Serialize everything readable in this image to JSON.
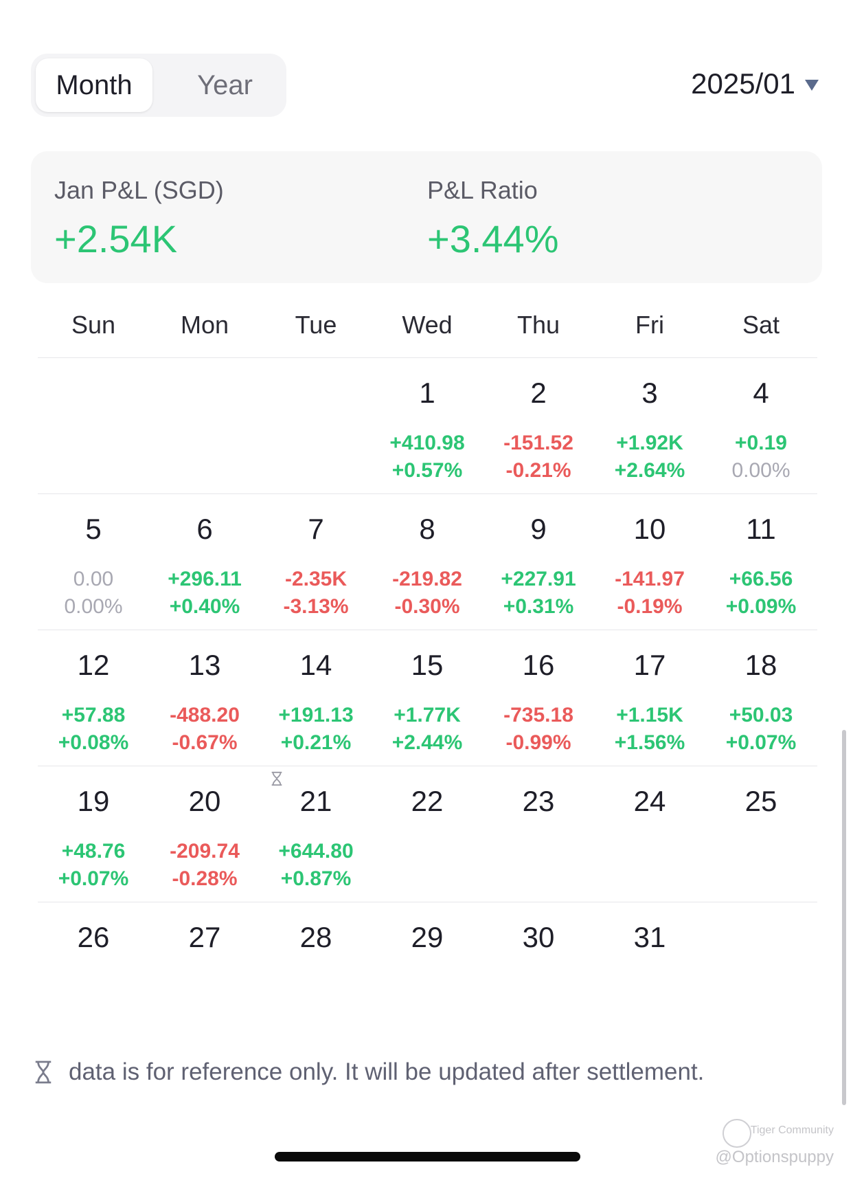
{
  "tabs": [
    {
      "label": "Month",
      "active": true
    },
    {
      "label": "Year",
      "active": false
    }
  ],
  "period": {
    "value": "2025/01"
  },
  "summary": {
    "pl_label": "Jan P&L (SGD)",
    "pl_value": "+2.54K",
    "ratio_label": "P&L Ratio",
    "ratio_value": "+3.44%"
  },
  "weekdays": [
    "Sun",
    "Mon",
    "Tue",
    "Wed",
    "Thu",
    "Fri",
    "Sat"
  ],
  "calendar": {
    "weeks": [
      [
        {
          "day": "",
          "pl": "",
          "pct": "",
          "dir": ""
        },
        {
          "day": "",
          "pl": "",
          "pct": "",
          "dir": ""
        },
        {
          "day": "",
          "pl": "",
          "pct": "",
          "dir": ""
        },
        {
          "day": "1",
          "pl": "+410.98",
          "pct": "+0.57%",
          "dir": "pos"
        },
        {
          "day": "2",
          "pl": "-151.52",
          "pct": "-0.21%",
          "dir": "neg"
        },
        {
          "day": "3",
          "pl": "+1.92K",
          "pct": "+2.64%",
          "dir": "pos"
        },
        {
          "day": "4",
          "pl": "+0.19",
          "pct": "0.00%",
          "dir": "pos",
          "pct_dir": "neu"
        }
      ],
      [
        {
          "day": "5",
          "pl": "0.00",
          "pct": "0.00%",
          "dir": "neu"
        },
        {
          "day": "6",
          "pl": "+296.11",
          "pct": "+0.40%",
          "dir": "pos"
        },
        {
          "day": "7",
          "pl": "-2.35K",
          "pct": "-3.13%",
          "dir": "neg"
        },
        {
          "day": "8",
          "pl": "-219.82",
          "pct": "-0.30%",
          "dir": "neg"
        },
        {
          "day": "9",
          "pl": "+227.91",
          "pct": "+0.31%",
          "dir": "pos"
        },
        {
          "day": "10",
          "pl": "-141.97",
          "pct": "-0.19%",
          "dir": "neg"
        },
        {
          "day": "11",
          "pl": "+66.56",
          "pct": "+0.09%",
          "dir": "pos"
        }
      ],
      [
        {
          "day": "12",
          "pl": "+57.88",
          "pct": "+0.08%",
          "dir": "pos"
        },
        {
          "day": "13",
          "pl": "-488.20",
          "pct": "-0.67%",
          "dir": "neg"
        },
        {
          "day": "14",
          "pl": "+191.13",
          "pct": "+0.21%",
          "dir": "pos"
        },
        {
          "day": "15",
          "pl": "+1.77K",
          "pct": "+2.44%",
          "dir": "pos"
        },
        {
          "day": "16",
          "pl": "-735.18",
          "pct": "-0.99%",
          "dir": "neg"
        },
        {
          "day": "17",
          "pl": "+1.15K",
          "pct": "+1.56%",
          "dir": "pos"
        },
        {
          "day": "18",
          "pl": "+50.03",
          "pct": "+0.07%",
          "dir": "pos"
        }
      ],
      [
        {
          "day": "19",
          "pl": "+48.76",
          "pct": "+0.07%",
          "dir": "pos"
        },
        {
          "day": "20",
          "pl": "-209.74",
          "pct": "-0.28%",
          "dir": "neg"
        },
        {
          "day": "21",
          "pl": "+644.80",
          "pct": "+0.87%",
          "dir": "pos"
        },
        {
          "day": "22",
          "pl": "",
          "pct": "",
          "dir": ""
        },
        {
          "day": "23",
          "pl": "",
          "pct": "",
          "dir": ""
        },
        {
          "day": "24",
          "pl": "",
          "pct": "",
          "dir": ""
        },
        {
          "day": "25",
          "pl": "",
          "pct": "",
          "dir": ""
        }
      ],
      [
        {
          "day": "26",
          "pl": "",
          "pct": "",
          "dir": ""
        },
        {
          "day": "27",
          "pl": "",
          "pct": "",
          "dir": ""
        },
        {
          "day": "28",
          "pl": "",
          "pct": "",
          "dir": ""
        },
        {
          "day": "29",
          "pl": "",
          "pct": "",
          "dir": ""
        },
        {
          "day": "30",
          "pl": "",
          "pct": "",
          "dir": ""
        },
        {
          "day": "31",
          "pl": "",
          "pct": "",
          "dir": ""
        },
        {
          "day": "",
          "pl": "",
          "pct": "",
          "dir": ""
        }
      ]
    ]
  },
  "footer": {
    "note": "data is for reference only. It will be updated after settlement.",
    "icon": "hourglass-icon"
  },
  "watermark": {
    "brand": "Tiger Community",
    "handle": "@Optionspuppy"
  },
  "colors": {
    "positive": "#2cc574",
    "negative": "#ea5a5a",
    "neutral": "#a8a8b2"
  }
}
